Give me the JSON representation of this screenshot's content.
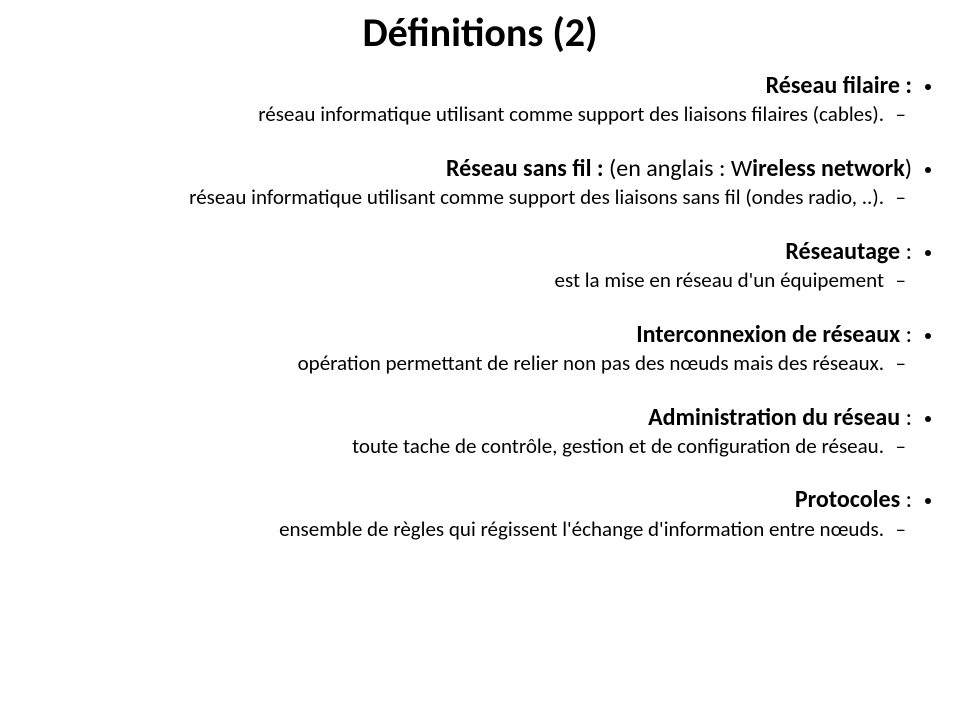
{
  "title": "Définitions (2)",
  "items": [
    {
      "term": "Réseau filaire :",
      "tail": "",
      "def": "réseau informatique utilisant comme support des liaisons  filaires (cables).",
      "spacer": 26
    },
    {
      "term": "Réseau sans fil : ",
      "tail_html": "(en anglais : W<b>ireless network</b>)",
      "def": "réseau informatique utilisant comme support des liaisons sans fil (ondes radio, ..).",
      "spacer": 26
    },
    {
      "term": "Réseautage",
      "colon": " :",
      "def": "est la mise en réseau d'un équipement",
      "spacer": 26
    },
    {
      "term": "Interconnexion de réseaux",
      "colon": " :",
      "def": "opération permettant de relier non pas des nœuds mais des réseaux.",
      "spacer": 26
    },
    {
      "term": "Administration du réseau",
      "colon": " :",
      "def": "toute tache de contrôle, gestion et de configuration de réseau.",
      "spacer": 26
    },
    {
      "term": "Protocoles",
      "colon": " :",
      "def": "ensemble de règles qui régissent l'échange d'information entre nœuds.",
      "spacer": 0
    }
  ],
  "dash": "–"
}
